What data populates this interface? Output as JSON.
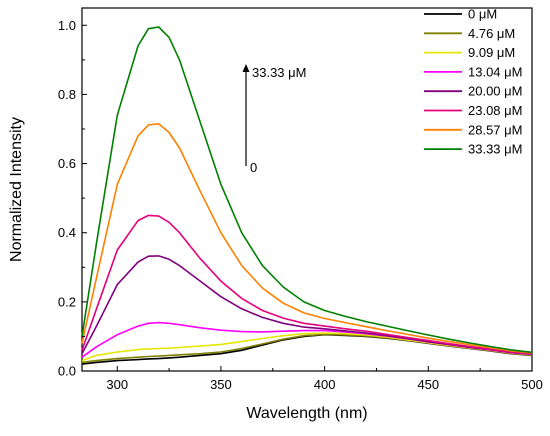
{
  "chart_data": {
    "type": "line",
    "title": "",
    "xlabel": "Wavelength (nm)",
    "ylabel": "Normalized Intensity",
    "xlim": [
      283,
      500
    ],
    "ylim": [
      0,
      1.05
    ],
    "xticks": [
      300,
      350,
      400,
      450,
      500
    ],
    "yticks": [
      0.0,
      0.2,
      0.4,
      0.6,
      0.8,
      1.0
    ],
    "xtick_labels": [
      "300",
      "350",
      "400",
      "450",
      "500"
    ],
    "ytick_labels": [
      "0.0",
      "0.2",
      "0.4",
      "0.6",
      "0.8",
      "1.0"
    ],
    "grid": false,
    "legend_position": "top-right",
    "x": [
      283,
      290,
      300,
      310,
      315,
      320,
      325,
      330,
      340,
      350,
      360,
      370,
      380,
      390,
      400,
      410,
      420,
      430,
      440,
      450,
      460,
      470,
      480,
      490,
      500
    ],
    "series": [
      {
        "name": "0 μM",
        "color": "#000000",
        "values": [
          0.02,
          0.025,
          0.03,
          0.033,
          0.035,
          0.036,
          0.038,
          0.04,
          0.045,
          0.05,
          0.06,
          0.075,
          0.09,
          0.1,
          0.105,
          0.103,
          0.1,
          0.095,
          0.088,
          0.08,
          0.072,
          0.065,
          0.058,
          0.05,
          0.045
        ]
      },
      {
        "name": "4.76 μM",
        "color": "#808000",
        "values": [
          0.025,
          0.03,
          0.036,
          0.04,
          0.042,
          0.043,
          0.045,
          0.047,
          0.05,
          0.055,
          0.065,
          0.078,
          0.092,
          0.102,
          0.106,
          0.104,
          0.101,
          0.096,
          0.089,
          0.081,
          0.073,
          0.066,
          0.059,
          0.051,
          0.046
        ]
      },
      {
        "name": "9.09 μM",
        "color": "#e6e600",
        "values": [
          0.03,
          0.045,
          0.055,
          0.062,
          0.064,
          0.065,
          0.066,
          0.068,
          0.072,
          0.077,
          0.085,
          0.094,
          0.102,
          0.108,
          0.11,
          0.108,
          0.104,
          0.098,
          0.09,
          0.082,
          0.074,
          0.067,
          0.06,
          0.052,
          0.047
        ]
      },
      {
        "name": "13.04 μM",
        "color": "#ff00ff",
        "values": [
          0.04,
          0.07,
          0.105,
          0.13,
          0.138,
          0.14,
          0.138,
          0.134,
          0.125,
          0.118,
          0.114,
          0.113,
          0.115,
          0.117,
          0.117,
          0.113,
          0.108,
          0.101,
          0.093,
          0.084,
          0.076,
          0.068,
          0.061,
          0.053,
          0.048
        ]
      },
      {
        "name": "20.00 μM",
        "color": "#800080",
        "values": [
          0.05,
          0.13,
          0.25,
          0.315,
          0.332,
          0.333,
          0.323,
          0.305,
          0.26,
          0.215,
          0.18,
          0.155,
          0.138,
          0.127,
          0.122,
          0.116,
          0.11,
          0.102,
          0.094,
          0.085,
          0.077,
          0.069,
          0.062,
          0.054,
          0.049
        ]
      },
      {
        "name": "23.08 μM",
        "color": "#e6007e",
        "values": [
          0.06,
          0.18,
          0.35,
          0.435,
          0.45,
          0.448,
          0.43,
          0.4,
          0.325,
          0.26,
          0.21,
          0.175,
          0.153,
          0.138,
          0.13,
          0.122,
          0.115,
          0.106,
          0.097,
          0.088,
          0.079,
          0.071,
          0.063,
          0.055,
          0.05
        ]
      },
      {
        "name": "28.57 μM",
        "color": "#ff8000",
        "values": [
          0.08,
          0.27,
          0.54,
          0.68,
          0.712,
          0.715,
          0.69,
          0.645,
          0.52,
          0.4,
          0.305,
          0.24,
          0.196,
          0.168,
          0.152,
          0.14,
          0.128,
          0.117,
          0.106,
          0.095,
          0.085,
          0.076,
          0.067,
          0.058,
          0.052
        ]
      },
      {
        "name": "33.33 μM",
        "color": "#008000",
        "values": [
          0.1,
          0.37,
          0.74,
          0.94,
          0.99,
          0.995,
          0.965,
          0.9,
          0.72,
          0.54,
          0.4,
          0.305,
          0.243,
          0.2,
          0.175,
          0.158,
          0.143,
          0.13,
          0.117,
          0.104,
          0.092,
          0.081,
          0.071,
          0.061,
          0.054
        ]
      }
    ],
    "annotations": {
      "arrow_top_label": "33.33 μM",
      "arrow_bottom_label": "0"
    }
  }
}
